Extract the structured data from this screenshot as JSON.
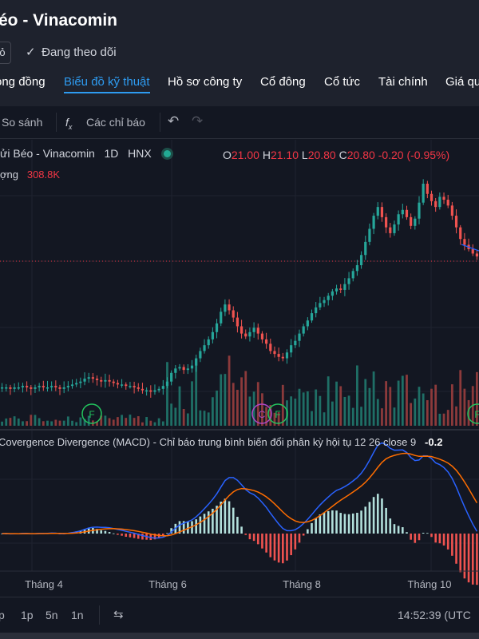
{
  "header": {
    "title": "éo - Vinacomin",
    "pill": "ỏ",
    "follow_label": "Đang theo dõi"
  },
  "tabs": [
    {
      "label": "ong đồng"
    },
    {
      "label": "Biểu đồ kỹ thuật",
      "active": true
    },
    {
      "label": "Hồ sơ công ty"
    },
    {
      "label": "Cổ đông"
    },
    {
      "label": "Cổ tức"
    },
    {
      "label": "Tài chính"
    },
    {
      "label": "Giá qu"
    }
  ],
  "toolbar": {
    "compare": "So sánh",
    "indicators": "Các chỉ báo",
    "undo_icon": "undo-icon",
    "redo_icon": "redo-icon"
  },
  "legend": {
    "symbol": "ửi Béo - Vinacomin",
    "interval": "1D",
    "exchange": "HNX",
    "open_label": "O",
    "open": "21.00",
    "high_label": "H",
    "high": "21.10",
    "low_label": "L",
    "low": "20.80",
    "close_label": "C",
    "close": "20.80",
    "change": "-0.20 (-0.95%)",
    "volume_label": "ợng",
    "volume": "308.8K"
  },
  "macd_label": "Covergence Divergence (MACD) - Chỉ báo trung bình biến đổi phân kỳ hội tụ 12 26 close 9",
  "macd_value": "-0.2",
  "bottom": {
    "ranges": [
      "p",
      "1p",
      "5n",
      "1n"
    ],
    "clock": "14:52:39 (UTC"
  },
  "colors": {
    "up": "#26a69a",
    "down": "#ef5350",
    "macd": "#2962ff",
    "signal": "#ff6d00",
    "accent": "#2e9bf0"
  },
  "chart_data": {
    "type": "candlestick",
    "x_ticks": [
      "Tháng 4",
      "Tháng 6",
      "Tháng 8",
      "Tháng 10"
    ],
    "last_close": 20.8,
    "price_points": [
      11.8,
      11.8,
      11.7,
      11.8,
      11.8,
      11.9,
      11.8,
      11.7,
      11.8,
      11.9,
      11.8,
      11.8,
      11.9,
      11.8,
      11.7,
      11.8,
      11.9,
      12.0,
      12.1,
      12.2,
      12.4,
      12.5,
      12.4,
      12.3,
      12.2,
      12.3,
      12.2,
      12.1,
      12.0,
      12.0,
      11.9,
      11.9,
      11.8,
      11.7,
      11.6,
      11.6,
      11.5,
      11.6,
      11.7,
      11.9,
      12.2,
      12.8,
      13.1,
      13.2,
      13.0,
      13.1,
      13.3,
      13.8,
      14.3,
      14.7,
      15.1,
      15.6,
      16.2,
      17.0,
      17.5,
      17.1,
      16.6,
      16.0,
      15.5,
      15.3,
      15.6,
      15.9,
      15.5,
      15.1,
      14.8,
      14.3,
      14.1,
      13.9,
      13.8,
      14.2,
      14.7,
      15.0,
      15.5,
      16.0,
      16.4,
      16.9,
      17.3,
      17.6,
      17.8,
      18.1,
      18.4,
      18.6,
      18.5,
      18.9,
      19.3,
      19.8,
      20.2,
      20.9,
      21.8,
      22.7,
      23.6,
      24.2,
      23.5,
      22.8,
      22.4,
      23.0,
      23.7,
      24.0,
      23.5,
      22.9,
      23.4,
      24.5,
      25.8,
      25.1,
      24.6,
      24.2,
      24.9,
      24.7,
      24.3,
      23.6,
      22.8,
      22.0,
      21.6,
      21.3,
      21.0,
      20.8
    ],
    "volume_markers": [
      "F",
      "C",
      "F",
      "F"
    ]
  }
}
